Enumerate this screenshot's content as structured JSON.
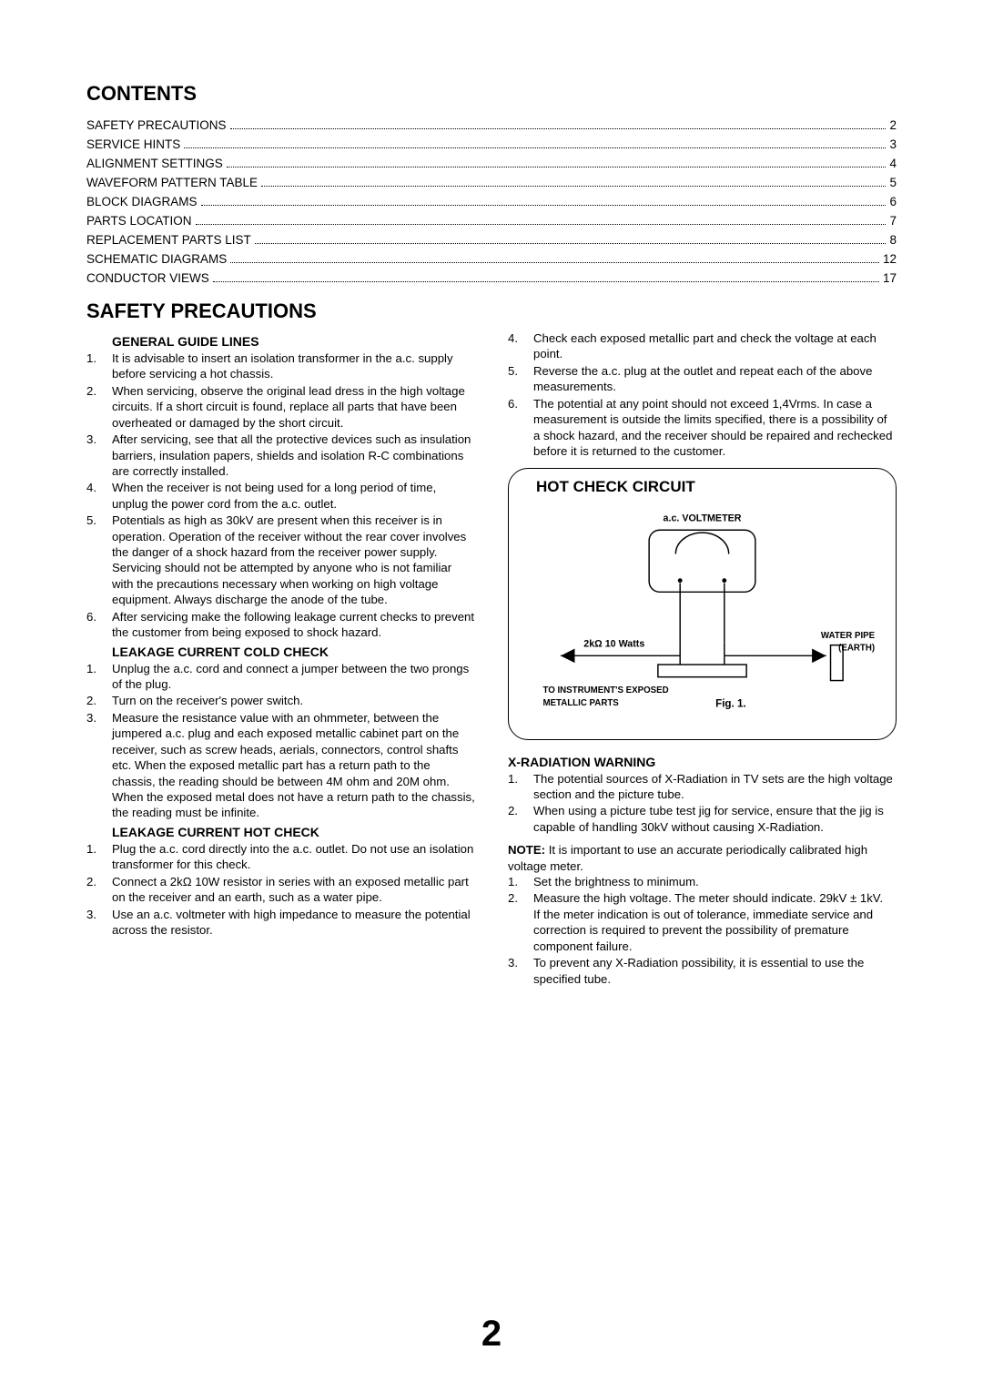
{
  "headings": {
    "contents": "CONTENTS",
    "safety": "SAFETY PRECAUTIONS",
    "general_guide": "GENERAL GUIDE LINES",
    "leakage_cold": "LEAKAGE CURRENT COLD CHECK",
    "leakage_hot": "LEAKAGE CURRENT HOT CHECK",
    "xradiation": "X-RADIATION WARNING",
    "hot_check": "HOT CHECK CIRCUIT"
  },
  "toc": {
    "columns": [
      "label",
      "page"
    ],
    "rows": [
      [
        "SAFETY PRECAUTIONS",
        "2"
      ],
      [
        "SERVICE HINTS",
        "3"
      ],
      [
        "ALIGNMENT SETTINGS",
        "4"
      ],
      [
        "WAVEFORM PATTERN TABLE",
        "5"
      ],
      [
        "BLOCK DIAGRAMS",
        "6"
      ],
      [
        "PARTS LOCATION",
        "7"
      ],
      [
        "REPLACEMENT PARTS LIST",
        "8"
      ],
      [
        "SCHEMATIC DIAGRAMS",
        "12"
      ],
      [
        "CONDUCTOR VIEWS",
        "17"
      ]
    ]
  },
  "left_col": {
    "general_guide_items": [
      "It is advisable to insert an isolation transformer in the a.c. supply before servicing a hot chassis.",
      "When servicing, observe the original lead dress in the high voltage circuits. If a short circuit is found, replace all parts that have been overheated or damaged by the short circuit.",
      "After servicing, see that all the protective devices such as insulation barriers, insulation papers, shields and isolation R-C combinations are correctly installed.",
      "When the receiver is not being used for a long period of time, unplug the power cord from the a.c. outlet.",
      "Potentials as high as 30kV are present when this receiver is in operation. Operation of the receiver without the rear cover involves the danger of a shock hazard from the receiver power supply. Servicing should not be attempted by anyone who is not familiar with the precautions necessary when working on high voltage equipment. Always discharge the anode of the tube.",
      "After servicing make the following leakage current checks to prevent the customer from being exposed to shock hazard."
    ],
    "leakage_cold_items": [
      "Unplug the a.c. cord and connect a jumper between the two prongs of the plug.",
      "Turn on the receiver's power switch.",
      "Measure the resistance value with an ohmmeter, between the jumpered a.c. plug and each exposed metallic cabinet part on the receiver, such as screw heads, aerials, connectors, control shafts etc. When the exposed metallic part has a return path to the chassis, the reading should be between 4M ohm and 20M ohm. When the exposed metal does not have a return path to the chassis, the reading must be infinite."
    ],
    "leakage_hot_items": [
      "Plug the a.c. cord directly into the a.c. outlet. Do not use an isolation transformer for this check.",
      "Connect a 2kΩ 10W resistor in series with an exposed metallic part on the receiver and an earth, such as a water pipe.",
      "Use an a.c. voltmeter with high impedance to measure the potential across the resistor."
    ]
  },
  "right_col": {
    "hot_check_cont_start": 4,
    "hot_check_cont": [
      "Check each exposed metallic part and check the voltage at each point.",
      "Reverse the a.c. plug at the outlet and repeat each of the above measurements.",
      "The potential at any point should not exceed 1,4Vrms. In case a measurement is outside the limits specified, there is a possibility of a shock hazard, and the receiver should be repaired and rechecked before it is returned to the customer."
    ],
    "xradiation_items": [
      "The potential sources of X-Radiation in TV sets are the high voltage section and the picture tube.",
      "When using a picture tube test jig for service, ensure that the jig is capable of handling 30kV without causing X-Radiation."
    ],
    "note_label": "NOTE:",
    "note_text": " It is important to use an accurate periodically calibrated high voltage meter.",
    "note_items": [
      "Set the brightness to minimum.",
      "Measure the high voltage. The meter should indicate. 29kV ± 1kV.",
      "To prevent any X-Radiation possibility, it is essential to use the specified tube."
    ],
    "note_extra": "If the meter indication is out of tolerance, immediate service and correction is required to prevent the possibility of premature component failure."
  },
  "diagram": {
    "labels": {
      "voltmeter": "a.c. VOLTMETER",
      "resistor": "2kΩ 10 Watts",
      "water_pipe": "WATER PIPE",
      "earth": "(EARTH)",
      "exposed1": "TO INSTRUMENT'S EXPOSED",
      "exposed2": "METALLIC PARTS",
      "fig": "Fig. 1."
    },
    "colors": {
      "stroke": "#000000",
      "fill": "#ffffff"
    }
  },
  "page_number": "2"
}
